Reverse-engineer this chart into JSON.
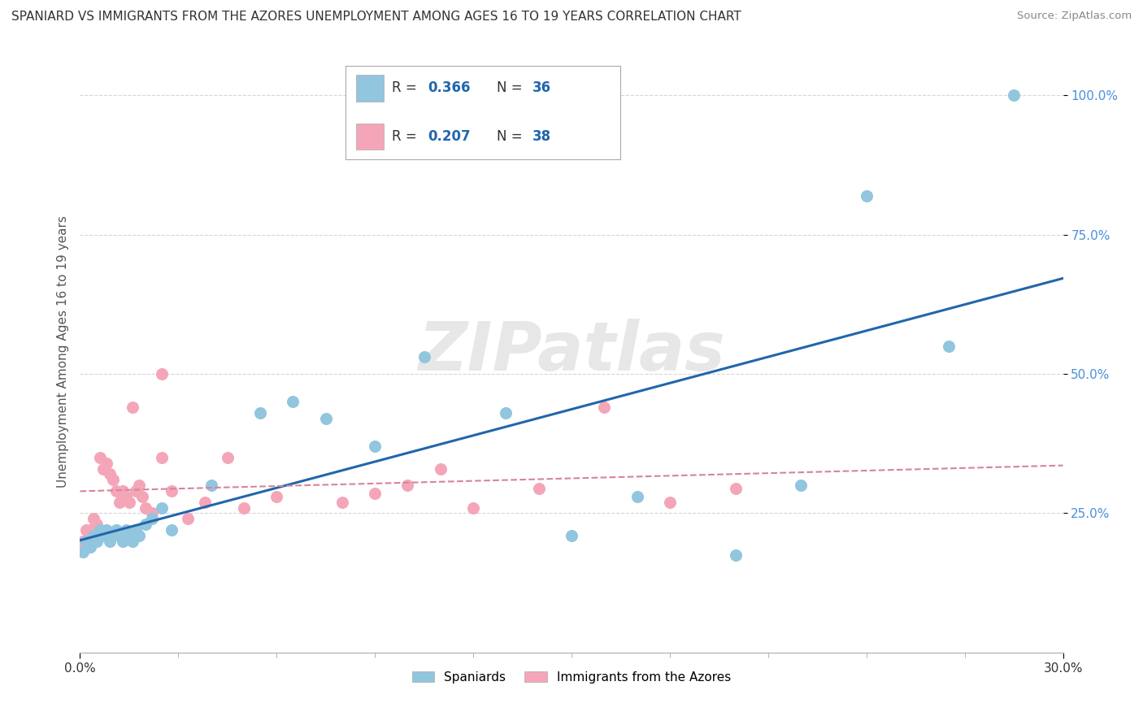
{
  "title": "SPANIARD VS IMMIGRANTS FROM THE AZORES UNEMPLOYMENT AMONG AGES 16 TO 19 YEARS CORRELATION CHART",
  "source": "Source: ZipAtlas.com",
  "ylabel": "Unemployment Among Ages 16 to 19 years",
  "watermark": "ZIPatlas",
  "blue_color": "#92c5de",
  "pink_color": "#f4a6b8",
  "blue_line_color": "#2166ac",
  "pink_line_color": "#d6849a",
  "xlim": [
    0.0,
    0.3
  ],
  "ylim": [
    0.0,
    1.08
  ],
  "ytick_values": [
    0.25,
    0.5,
    0.75,
    1.0
  ],
  "ytick_labels": [
    "25.0%",
    "50.0%",
    "75.0%",
    "100.0%"
  ],
  "xtick_values": [
    0.0,
    0.3
  ],
  "xtick_labels": [
    "0.0%",
    "30.0%"
  ],
  "legend1_r": "0.366",
  "legend1_n": "36",
  "legend2_r": "0.207",
  "legend2_n": "38",
  "legend_label1": "Spaniards",
  "legend_label2": "Immigrants from the Azores",
  "spaniards_x": [
    0.001,
    0.002,
    0.003,
    0.004,
    0.005,
    0.006,
    0.007,
    0.008,
    0.009,
    0.01,
    0.011,
    0.012,
    0.013,
    0.014,
    0.015,
    0.016,
    0.017,
    0.018,
    0.02,
    0.022,
    0.025,
    0.028,
    0.04,
    0.055,
    0.065,
    0.075,
    0.09,
    0.105,
    0.13,
    0.15,
    0.17,
    0.2,
    0.22,
    0.24,
    0.265,
    0.285
  ],
  "spaniards_y": [
    0.18,
    0.2,
    0.19,
    0.21,
    0.2,
    0.22,
    0.21,
    0.22,
    0.2,
    0.21,
    0.22,
    0.21,
    0.2,
    0.22,
    0.21,
    0.2,
    0.22,
    0.21,
    0.23,
    0.24,
    0.26,
    0.22,
    0.3,
    0.43,
    0.45,
    0.42,
    0.37,
    0.53,
    0.43,
    0.21,
    0.28,
    0.175,
    0.3,
    0.82,
    0.55,
    1.0
  ],
  "azores_x": [
    0.001,
    0.002,
    0.003,
    0.004,
    0.005,
    0.006,
    0.007,
    0.008,
    0.009,
    0.01,
    0.011,
    0.012,
    0.013,
    0.014,
    0.015,
    0.016,
    0.017,
    0.018,
    0.019,
    0.02,
    0.022,
    0.025,
    0.028,
    0.033,
    0.038,
    0.05,
    0.06,
    0.08,
    0.09,
    0.1,
    0.11,
    0.12,
    0.14,
    0.16,
    0.18,
    0.2,
    0.025,
    0.045
  ],
  "azores_y": [
    0.2,
    0.22,
    0.22,
    0.24,
    0.23,
    0.35,
    0.33,
    0.34,
    0.32,
    0.31,
    0.29,
    0.27,
    0.29,
    0.28,
    0.27,
    0.44,
    0.29,
    0.3,
    0.28,
    0.26,
    0.25,
    0.35,
    0.29,
    0.24,
    0.27,
    0.26,
    0.28,
    0.27,
    0.285,
    0.3,
    0.33,
    0.26,
    0.295,
    0.44,
    0.27,
    0.295,
    0.5,
    0.35
  ]
}
